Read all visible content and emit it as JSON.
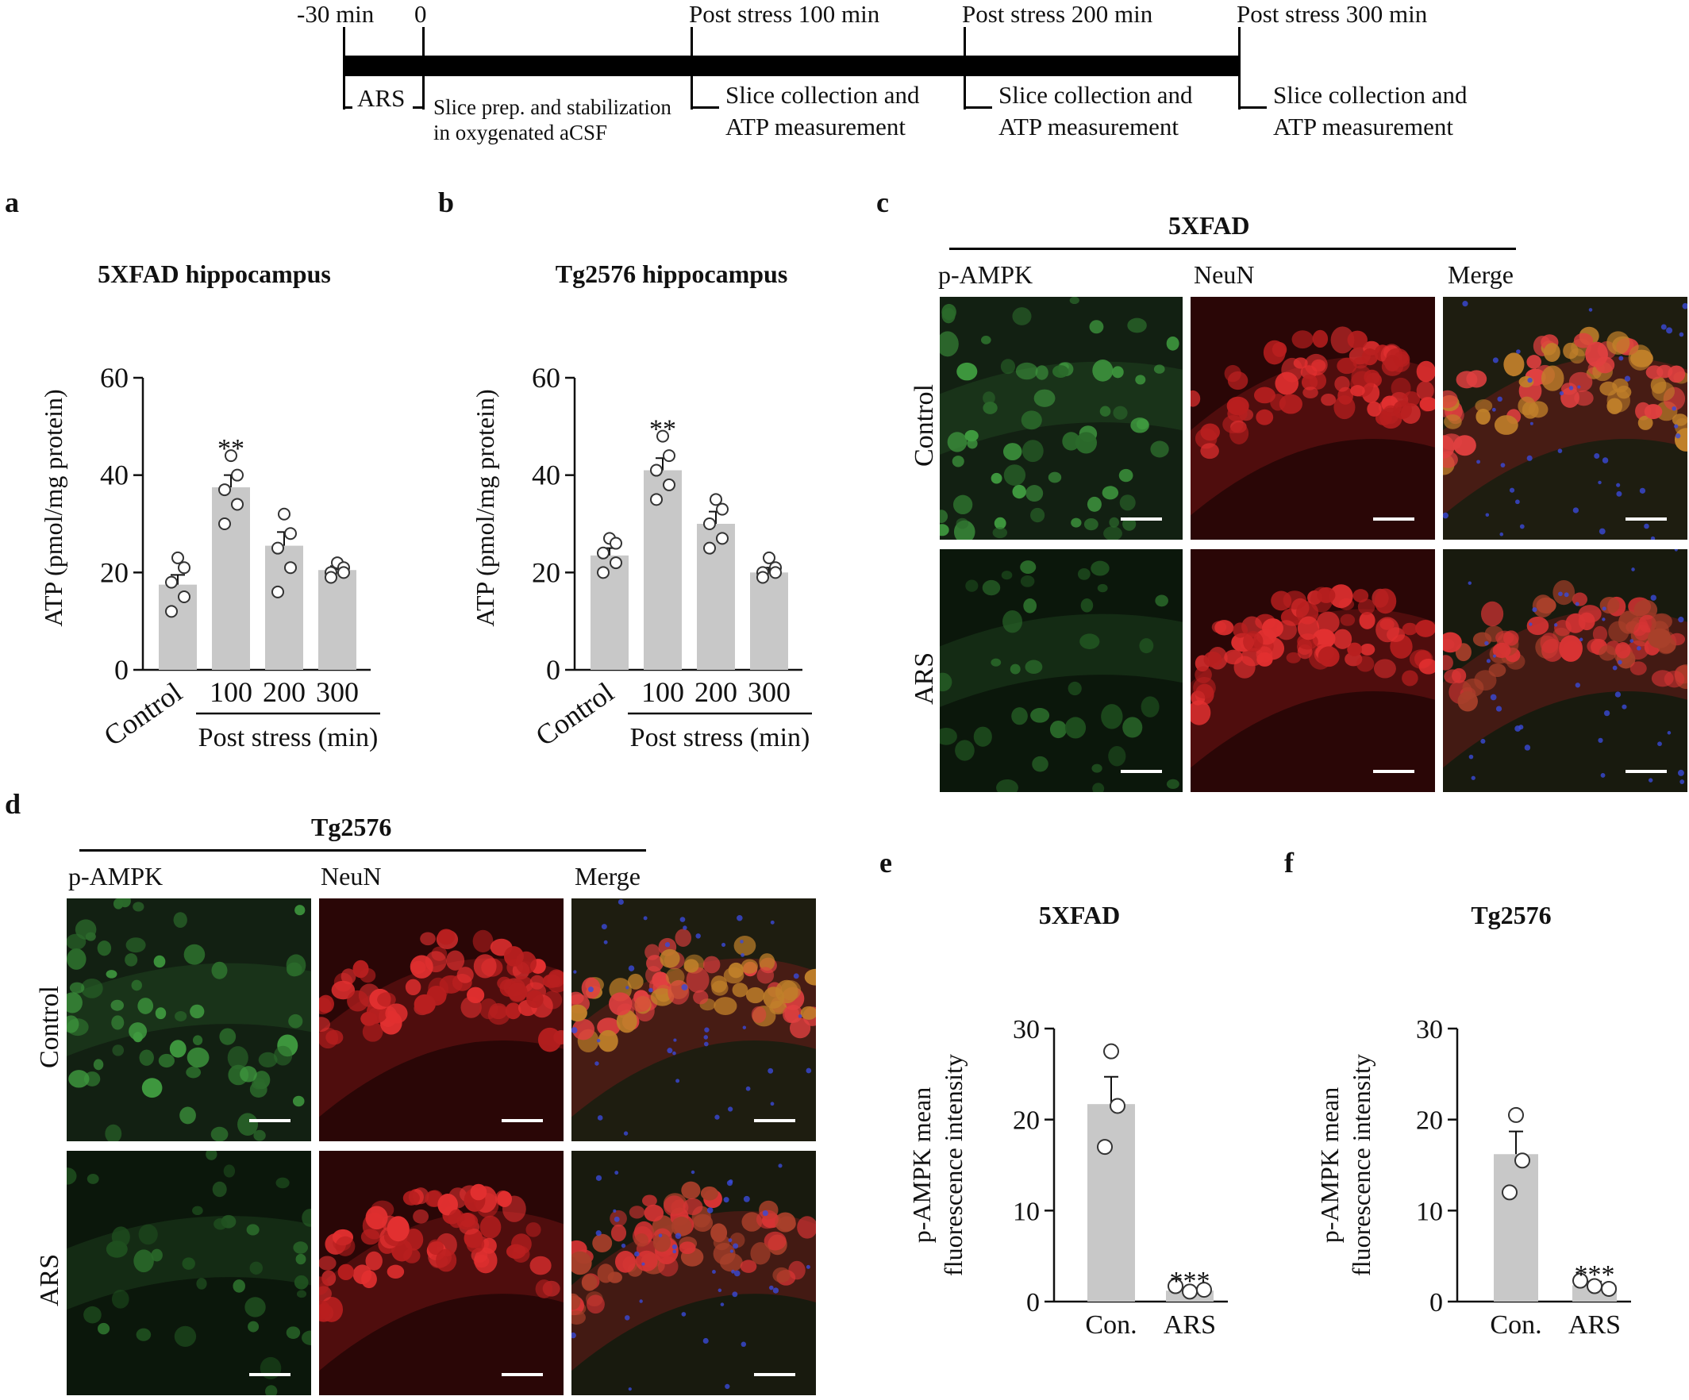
{
  "timeline": {
    "ticks": [
      "-30 min",
      "0",
      "Post stress 100 min",
      "Post stress 200 min",
      "Post stress 300 min"
    ],
    "ars": "ARS",
    "slice_prep": [
      "Slice prep. and stabilization",
      "in oxygenated aCSF"
    ],
    "collection": [
      "Slice collection and",
      "ATP measurement"
    ]
  },
  "panels": {
    "a": "a",
    "b": "b",
    "c": "c",
    "d": "d",
    "e": "e",
    "f": "f"
  },
  "micrographs": {
    "c": {
      "title": "5XFAD",
      "columns": [
        "p-AMPK",
        "NeuN",
        "Merge"
      ],
      "rows": [
        "Control",
        "ARS"
      ]
    },
    "d": {
      "title": "Tg2576",
      "columns": [
        "p-AMPK",
        "NeuN",
        "Merge"
      ],
      "rows": [
        "Control",
        "ARS"
      ]
    }
  },
  "chart_data": [
    {
      "id": "a",
      "type": "bar",
      "title": "5XFAD hippocampus",
      "ylabel": "ATP (pmol/mg protein)",
      "categories": [
        "Control",
        "100",
        "200",
        "300"
      ],
      "group_label": "Post stress (min)",
      "values": [
        17.5,
        37.5,
        25.5,
        20.5
      ],
      "errors": [
        2.0,
        2.5,
        2.8,
        0.8
      ],
      "points": [
        [
          23,
          21,
          18,
          15,
          12
        ],
        [
          44,
          40,
          37,
          34,
          30
        ],
        [
          32,
          28,
          25,
          21,
          16
        ],
        [
          22,
          21,
          20,
          20,
          19
        ]
      ],
      "significance": [
        "",
        "**",
        "",
        ""
      ],
      "ylim": [
        0,
        60
      ],
      "yticks": [
        "0",
        "20",
        "40",
        "60"
      ],
      "bar_color": "#c8c8c8"
    },
    {
      "id": "b",
      "type": "bar",
      "title": "Tg2576 hippocampus",
      "ylabel": "ATP (pmol/mg protein)",
      "categories": [
        "Control",
        "100",
        "200",
        "300"
      ],
      "group_label": "Post stress (min)",
      "values": [
        23.5,
        41.0,
        30.0,
        20.0
      ],
      "errors": [
        1.5,
        2.5,
        2.5,
        1.0
      ],
      "points": [
        [
          27,
          26,
          24,
          22,
          20
        ],
        [
          48,
          44,
          41,
          38,
          35
        ],
        [
          35,
          33,
          30,
          27,
          25
        ],
        [
          23,
          21,
          20,
          20,
          19
        ]
      ],
      "significance": [
        "",
        "**",
        "",
        ""
      ],
      "ylim": [
        0,
        60
      ],
      "yticks": [
        "0",
        "20",
        "40",
        "60"
      ],
      "bar_color": "#c8c8c8"
    },
    {
      "id": "e",
      "type": "bar",
      "title": "5XFAD",
      "ylabel": [
        "p-AMPK mean",
        "fluorescence intensity"
      ],
      "categories": [
        "Con.",
        "ARS"
      ],
      "values": [
        21.7,
        1.2
      ],
      "errors": [
        3.0,
        0.3
      ],
      "points": [
        [
          27.5,
          21.5,
          17.0
        ],
        [
          1.7,
          1.1,
          1.3
        ]
      ],
      "significance": [
        "",
        "***"
      ],
      "ylim": [
        0,
        30
      ],
      "yticks": [
        "0",
        "10",
        "20",
        "30"
      ],
      "bar_color": "#c8c8c8"
    },
    {
      "id": "f",
      "type": "bar",
      "title": "Tg2576",
      "ylabel": [
        "p-AMPK mean",
        "fluorescence intensity"
      ],
      "categories": [
        "Con.",
        "ARS"
      ],
      "values": [
        16.2,
        1.8
      ],
      "errors": [
        2.5,
        0.4
      ],
      "points": [
        [
          20.5,
          15.5,
          12.0
        ],
        [
          2.3,
          1.7,
          1.4
        ]
      ],
      "significance": [
        "",
        "***"
      ],
      "ylim": [
        0,
        30
      ],
      "yticks": [
        "0",
        "10",
        "20",
        "30"
      ],
      "bar_color": "#c8c8c8"
    }
  ]
}
